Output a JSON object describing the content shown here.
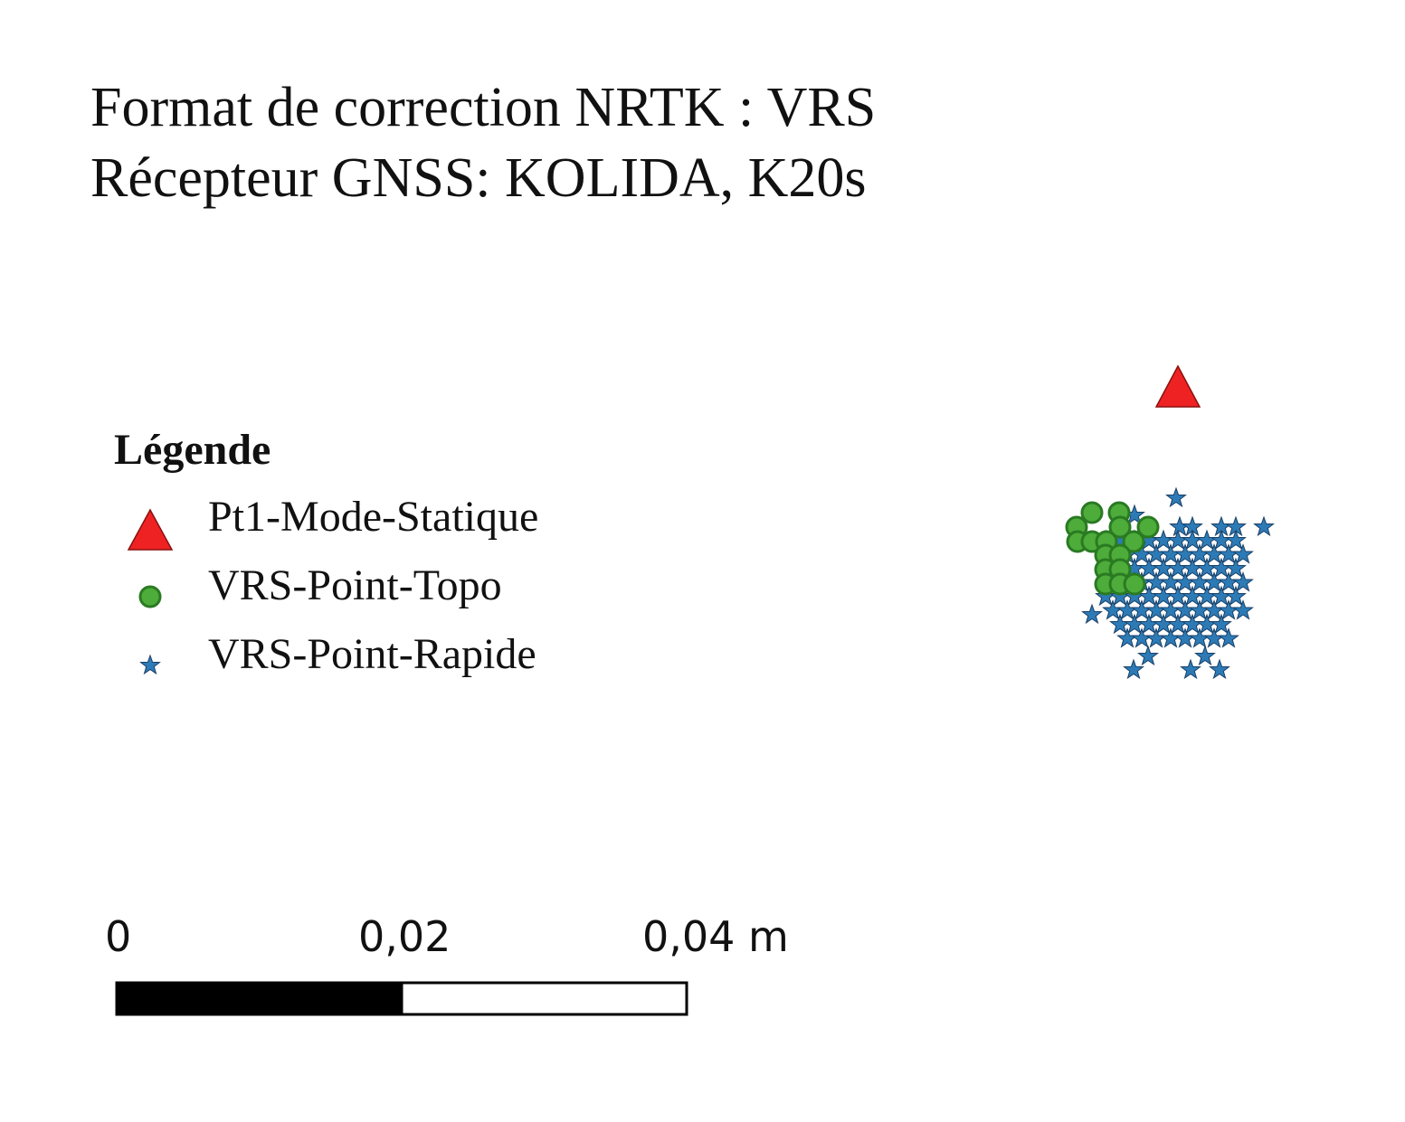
{
  "title": {
    "line1": "Format de correction NRTK : VRS",
    "line2": "Récepteur GNSS: KOLIDA, K20s"
  },
  "legend": {
    "heading": "Légende",
    "items": [
      {
        "label": "Pt1-Mode-Statique",
        "symbol": "triangle-icon",
        "color": "#ee2222"
      },
      {
        "label": "VRS-Point-Topo",
        "symbol": "circle-icon",
        "color": "#4dac3a"
      },
      {
        "label": "VRS-Point-Rapide",
        "symbol": "star-icon",
        "color": "#2c7bb6"
      }
    ]
  },
  "scale_bar": {
    "labels": [
      "0",
      "0,02",
      "0,04 m"
    ]
  },
  "colors": {
    "static": "#ee2222",
    "topo": "#4dac3a",
    "topo_stroke": "#2a7a22",
    "rapide": "#2c7bb6",
    "rapide_stroke": "#1a3f66"
  }
}
